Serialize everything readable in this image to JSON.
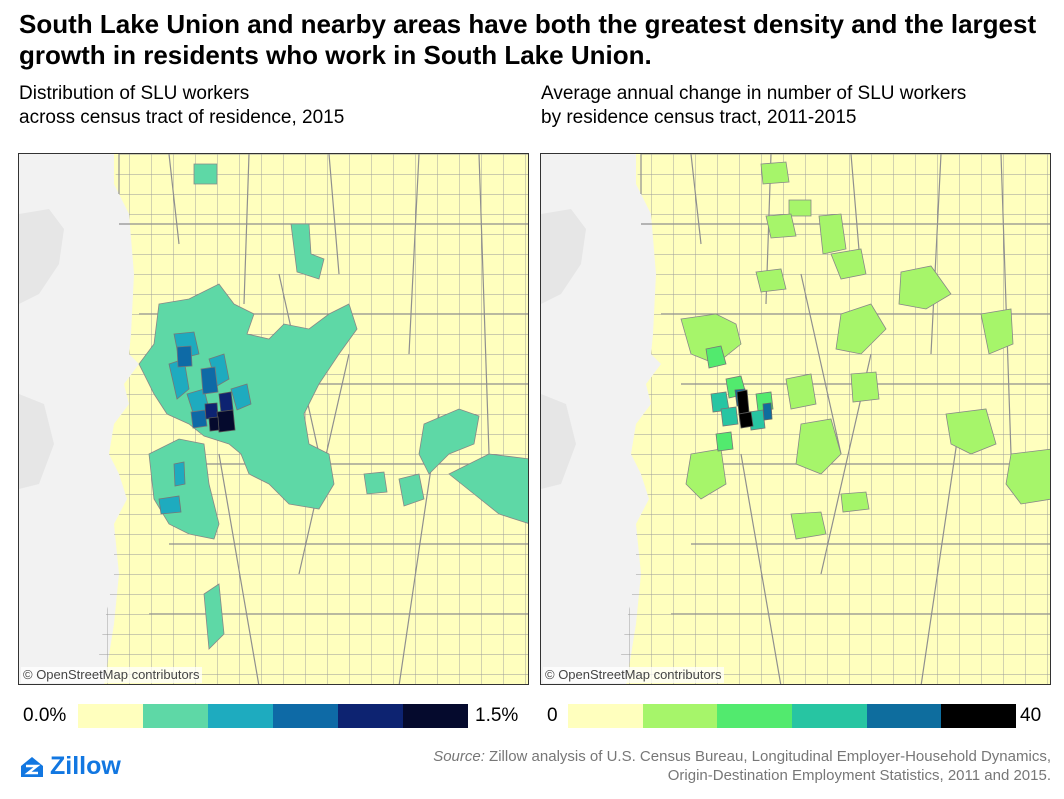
{
  "title": "South Lake Union and nearby areas have both the greatest density and the largest growth in residents who work in South Lake Union.",
  "left": {
    "subtitle_line1": "Distribution of SLU workers",
    "subtitle_line2": "across census tract of residence, 2015",
    "attribution": "© OpenStreetMap contributors",
    "legend_min": "0.0%",
    "legend_max": "1.5%",
    "legend_colors": [
      "#ffffbe",
      "#5ed8a6",
      "#1eabbf",
      "#0e6aa6",
      "#0d2371",
      "#050a2d"
    ]
  },
  "right": {
    "subtitle_line1": "Average annual change in number of SLU workers",
    "subtitle_line2": "by residence census tract, 2011-2015",
    "attribution": "© OpenStreetMap contributors",
    "legend_min": "0",
    "legend_max": "40",
    "legend_colors": [
      "#ffffbe",
      "#a6f56a",
      "#52ea6e",
      "#27c5a2",
      "#0e6d9e",
      "#000000"
    ]
  },
  "source_label": "Source:",
  "source_line1": " Zillow analysis of U.S. Census Bureau, Longitudinal Employer-Household Dynamics,",
  "source_line2": "Origin-Destination Employment Statistics, 2011 and 2015.",
  "logo_text": "Zillow",
  "colors": {
    "base": "#ffffbe",
    "water": "#f2f2f2",
    "tract_line": "#9a9a9a",
    "brand": "#1277e1"
  }
}
